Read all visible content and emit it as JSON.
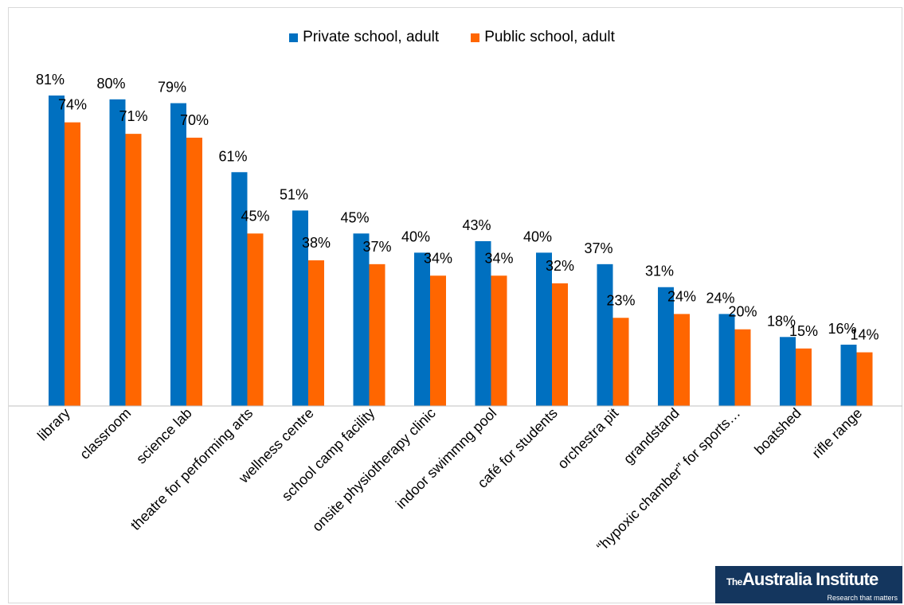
{
  "chart_data": {
    "type": "bar",
    "categories": [
      "library",
      "classroom",
      "science lab",
      "theatre for performing arts",
      "wellness centre",
      "school camp facility",
      "onsite physiotherapy clinic",
      "indoor swimmng pool",
      "café for students",
      "orchestra pit",
      "grandstand",
      "“hypoxic chamber” for sports…",
      "boatshed",
      "rifle range"
    ],
    "series": [
      {
        "name": "Private school, adult",
        "color": "#0070c0",
        "values": [
          81,
          80,
          79,
          61,
          51,
          45,
          40,
          43,
          40,
          37,
          31,
          24,
          18,
          16
        ],
        "labels": [
          "81%",
          "80%",
          "79%",
          "61%",
          "51%",
          "45%",
          "40%",
          "43%",
          "40%",
          "37%",
          "31%",
          "24%",
          "18%",
          "16%"
        ]
      },
      {
        "name": "Public school, adult",
        "color": "#ff6600",
        "values": [
          74,
          71,
          70,
          45,
          38,
          37,
          34,
          34,
          32,
          23,
          24,
          20,
          15,
          14
        ],
        "labels": [
          "74%",
          "71%",
          "70%",
          "45%",
          "38%",
          "37%",
          "34%",
          "34%",
          "32%",
          "23%",
          "24%",
          "20%",
          "15%",
          "14%"
        ]
      }
    ],
    "ylim": [
      0,
      85
    ],
    "grid": false,
    "legend": "top-center"
  },
  "logo": {
    "the": "The",
    "name": "Australia Institute",
    "tagline": "Research that matters"
  }
}
